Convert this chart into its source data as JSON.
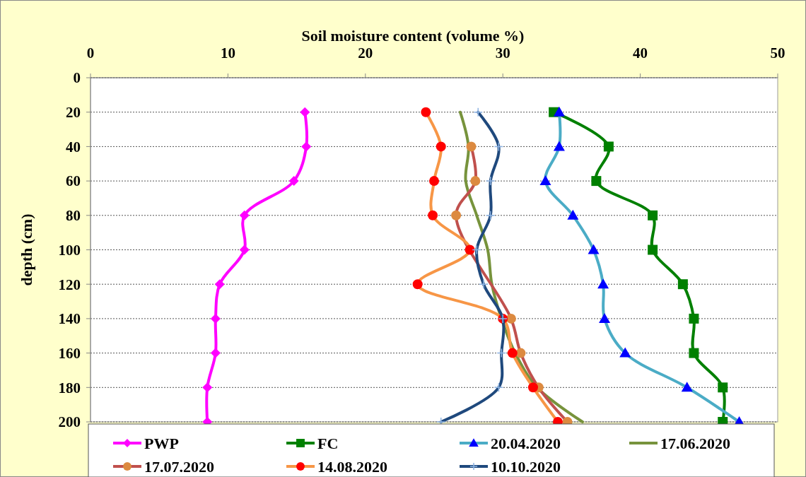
{
  "chart_data": {
    "type": "line",
    "xlabel": "Soil moisture content (volume %)",
    "ylabel": "depth (cm)",
    "xlim": [
      0,
      50
    ],
    "xticks": [
      0,
      10,
      20,
      30,
      40,
      50
    ],
    "ylim": [
      200,
      0
    ],
    "yticks": [
      0,
      20,
      40,
      60,
      80,
      100,
      120,
      140,
      160,
      180,
      200
    ],
    "grid": "y",
    "legend": "bottom",
    "line_style": "solid",
    "series": [
      {
        "name": "PWP",
        "color": "#ff00ff",
        "marker": "diamond",
        "x": [
          15.6,
          15.7,
          14.8,
          11.2,
          11.2,
          9.4,
          9.1,
          9.1,
          8.5,
          8.5
        ],
        "values": [
          20,
          40,
          60,
          80,
          100,
          120,
          140,
          160,
          180,
          200
        ]
      },
      {
        "name": "FC",
        "color": "#008000",
        "marker": "square",
        "x": [
          33.7,
          37.7,
          36.8,
          40.9,
          40.9,
          43.1,
          43.9,
          43.9,
          46.0,
          46.0
        ],
        "values": [
          20,
          40,
          60,
          80,
          100,
          120,
          140,
          160,
          180,
          200
        ]
      },
      {
        "name": "20.04.2020",
        "color": "#4bacc6",
        "marker": "triangle",
        "colors": [
          "#0000ff",
          "#0000ff",
          "#0000ff",
          "#0000ff",
          "#0000ff",
          "#0000ff",
          "#0000ff",
          "#0000ff",
          "#0000ff",
          "#0000ff"
        ],
        "x": [
          34.1,
          34.1,
          33.1,
          35.1,
          36.6,
          37.3,
          37.4,
          38.9,
          43.4,
          47.2
        ],
        "values": [
          20,
          40,
          60,
          80,
          100,
          120,
          140,
          160,
          180,
          200
        ]
      },
      {
        "name": "17.06.2020",
        "color": "#77933c",
        "marker": "none",
        "x": [
          26.9,
          27.5,
          27.3,
          28.1,
          28.9,
          29.2,
          29.9,
          30.9,
          32.5,
          35.8
        ],
        "values": [
          20,
          40,
          60,
          80,
          100,
          120,
          140,
          160,
          180,
          200
        ]
      },
      {
        "name": "17.07.2020",
        "color": "#c0504d",
        "marker": "circle",
        "colors": [
          null,
          "#dc8a40",
          "#dc8a40",
          "#dc8a40",
          null,
          null,
          "#dc8a40",
          "#dc8a40",
          "#dc8a40",
          "#dc8a40"
        ],
        "x": [
          null,
          27.7,
          28.0,
          26.6,
          null,
          null,
          30.6,
          31.3,
          32.6,
          34.7
        ],
        "values": [
          null,
          40,
          60,
          80,
          null,
          null,
          140,
          160,
          180,
          200
        ]
      },
      {
        "name": "14.08.2020",
        "color": "#f79646",
        "marker": "circle",
        "colors": [
          "#ff0000",
          "#ff0000",
          "#ff0000",
          "#ff0000",
          "#ff0000",
          "#ff0000",
          "#ff0000",
          "#ff0000",
          "#ff0000",
          "#ff0000"
        ],
        "x": [
          24.4,
          25.5,
          25.0,
          24.9,
          27.6,
          23.8,
          30.0,
          30.7,
          32.2,
          34.0
        ],
        "values": [
          20,
          40,
          60,
          80,
          100,
          120,
          140,
          160,
          180,
          200
        ]
      },
      {
        "name": "10.10.2020",
        "color": "#1f497d",
        "marker": "cross",
        "colors": [
          "#8eb4e3",
          "#8eb4e3",
          "#8eb4e3",
          "#8eb4e3",
          "#8eb4e3",
          "#8eb4e3",
          "#8eb4e3",
          "#8eb4e3",
          "#8eb4e3",
          "#8eb4e3"
        ],
        "x": [
          28.2,
          29.7,
          29.1,
          29.1,
          28.1,
          28.6,
          30.0,
          29.9,
          29.7,
          25.5
        ],
        "values": [
          20,
          40,
          60,
          80,
          100,
          120,
          140,
          160,
          180,
          200
        ]
      }
    ]
  }
}
